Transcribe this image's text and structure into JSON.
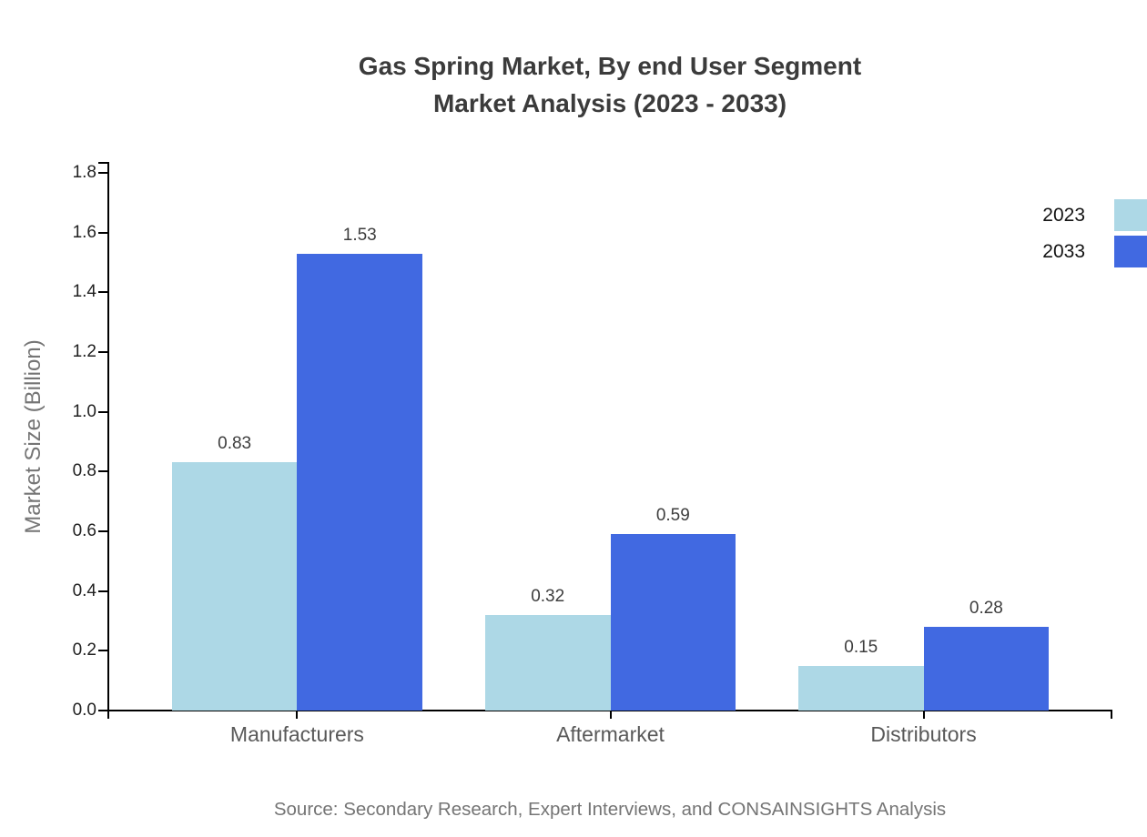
{
  "title": {
    "line1": "Gas Spring Market, By end User Segment",
    "line2": "Market Analysis (2023 - 2033)"
  },
  "source": "Source: Secondary Research, Expert Interviews, and CONSAINSIGHTS Analysis",
  "chart_data": {
    "type": "bar",
    "categories": [
      "Manufacturers",
      "Aftermarket",
      "Distributors"
    ],
    "series": [
      {
        "name": "2023",
        "color": "#ADD8E6",
        "values": [
          0.83,
          0.32,
          0.15
        ]
      },
      {
        "name": "2033",
        "color": "#4169E1",
        "values": [
          1.53,
          0.59,
          0.28
        ]
      }
    ],
    "title": "Gas Spring Market, By end User Segment Market Analysis (2023 - 2033)",
    "xlabel": "",
    "ylabel": "Market Size (Billion)",
    "ylim": [
      0,
      1.8
    ],
    "ytick_step": 0.2,
    "ytick_labels": [
      "0.0",
      "0.2",
      "0.4",
      "0.6",
      "0.8",
      "1.0",
      "1.2",
      "1.4",
      "1.6",
      "1.8"
    ],
    "grid": false,
    "legend_position": "top-right",
    "value_labels_shown": true,
    "colors": {
      "axis": "#000000",
      "tick_label": "#212121",
      "category_label": "#595959",
      "value_label": "#3d3d3d",
      "muted_text": "#757575",
      "title_text": "#3b3b3b"
    }
  }
}
